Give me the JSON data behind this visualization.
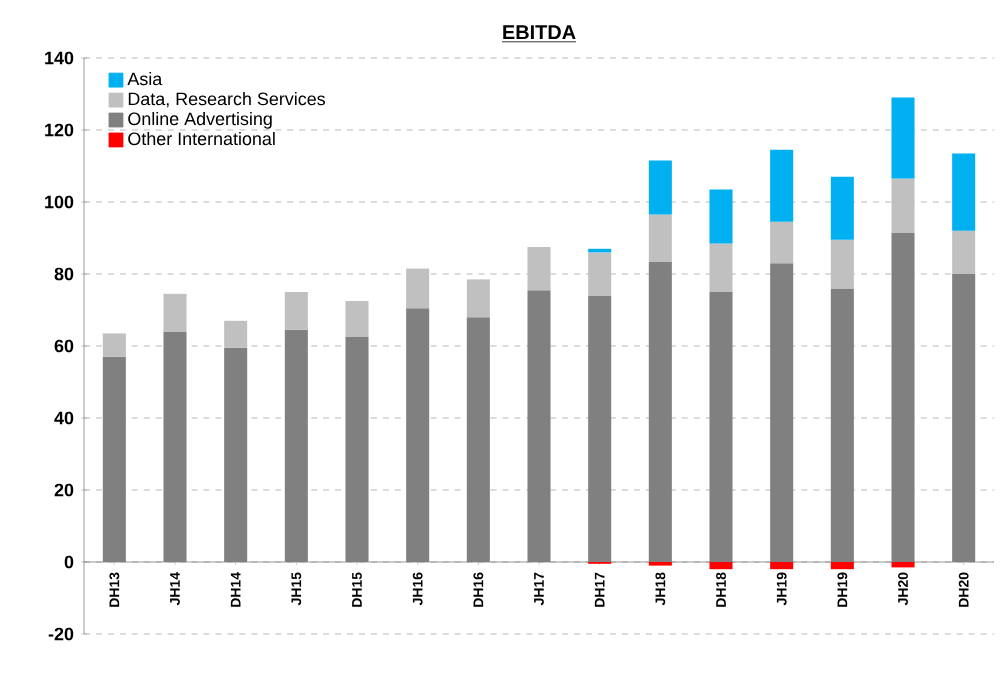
{
  "chart_data": {
    "type": "bar",
    "title": "EBITDA",
    "stacked": true,
    "legend": "top left",
    "grid": "y",
    "categories": [
      "DH13",
      "JH14",
      "DH14",
      "JH15",
      "DH15",
      "JH16",
      "DH16",
      "JH17",
      "DH17",
      "JH18",
      "DH18",
      "JH19",
      "DH19",
      "JH20",
      "DH20"
    ],
    "series": [
      {
        "name": "Online Advertising",
        "color": "#808080",
        "values": [
          57,
          64,
          59.5,
          64.5,
          62.5,
          70.5,
          68,
          75.5,
          74,
          83.5,
          75,
          83,
          76,
          91.5,
          80
        ]
      },
      {
        "name": "Data, Research Services",
        "color": "#c0c0c0",
        "values": [
          6.5,
          10.5,
          7.5,
          10.5,
          10,
          11,
          10.5,
          12,
          12,
          13,
          13.5,
          11.5,
          13.5,
          15,
          12
        ]
      },
      {
        "name": "Asia",
        "color": "#00b0f0",
        "values": [
          null,
          null,
          null,
          null,
          null,
          null,
          null,
          null,
          1,
          15,
          15,
          20,
          17.5,
          22.5,
          21.5
        ]
      },
      {
        "name": "Other International",
        "color": "#ff0000",
        "values": [
          null,
          null,
          null,
          null,
          null,
          null,
          null,
          null,
          -0.5,
          -1,
          -2,
          -2,
          -2,
          -1.5,
          null
        ]
      }
    ],
    "ylim": [
      -20,
      140
    ],
    "yticks": [
      -20,
      0,
      20,
      40,
      60,
      80,
      100,
      120,
      140
    ]
  }
}
